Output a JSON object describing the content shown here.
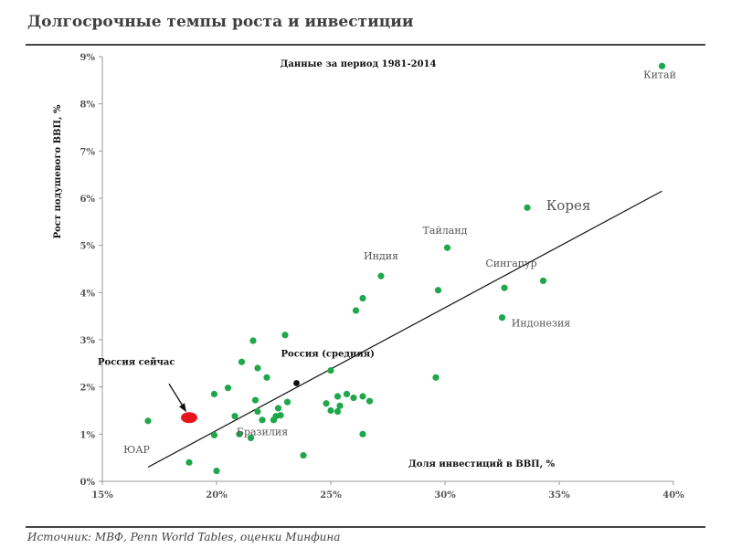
{
  "title": "Долгосрочные темпы роста и инвестиции",
  "source": "Источник: МВФ, Penn World Tables, оценки Минфина",
  "chart_data": {
    "type": "scatter",
    "title": "",
    "subtitle": "Данные за период 1981-2014",
    "xlabel": "Доля инвестиций в ВВП, %",
    "ylabel": "Рост подушевого ВВП, %",
    "xlim": [
      15,
      40
    ],
    "ylim": [
      0,
      9
    ],
    "x_ticks": [
      "15%",
      "20%",
      "25%",
      "30%",
      "35%",
      "40%"
    ],
    "y_ticks": [
      "0%",
      "1%",
      "2%",
      "3%",
      "4%",
      "5%",
      "6%",
      "7%",
      "8%",
      "9%"
    ],
    "point_color": "#1ea84a",
    "trendline": {
      "x": [
        17.0,
        39.5
      ],
      "y": [
        0.3,
        6.15
      ]
    },
    "points": [
      {
        "x": 39.5,
        "y": 8.8
      },
      {
        "x": 33.6,
        "y": 5.8
      },
      {
        "x": 30.1,
        "y": 4.95
      },
      {
        "x": 27.2,
        "y": 4.35
      },
      {
        "x": 29.7,
        "y": 4.05
      },
      {
        "x": 32.6,
        "y": 4.1
      },
      {
        "x": 34.3,
        "y": 4.25
      },
      {
        "x": 26.4,
        "y": 3.88
      },
      {
        "x": 26.1,
        "y": 3.62
      },
      {
        "x": 32.5,
        "y": 3.47
      },
      {
        "x": 23.0,
        "y": 3.1
      },
      {
        "x": 21.6,
        "y": 2.98
      },
      {
        "x": 21.1,
        "y": 2.53
      },
      {
        "x": 21.8,
        "y": 2.4
      },
      {
        "x": 25.0,
        "y": 2.35
      },
      {
        "x": 22.2,
        "y": 2.2
      },
      {
        "x": 29.6,
        "y": 2.2
      },
      {
        "x": 20.5,
        "y": 1.98
      },
      {
        "x": 19.9,
        "y": 1.85
      },
      {
        "x": 25.7,
        "y": 1.85
      },
      {
        "x": 21.7,
        "y": 1.72
      },
      {
        "x": 23.1,
        "y": 1.68
      },
      {
        "x": 24.8,
        "y": 1.65
      },
      {
        "x": 25.3,
        "y": 1.8
      },
      {
        "x": 26.0,
        "y": 1.77
      },
      {
        "x": 26.4,
        "y": 1.8
      },
      {
        "x": 26.7,
        "y": 1.7
      },
      {
        "x": 25.4,
        "y": 1.6
      },
      {
        "x": 22.7,
        "y": 1.55
      },
      {
        "x": 21.8,
        "y": 1.48
      },
      {
        "x": 25.0,
        "y": 1.5
      },
      {
        "x": 25.3,
        "y": 1.48
      },
      {
        "x": 22.0,
        "y": 1.3
      },
      {
        "x": 22.6,
        "y": 1.38
      },
      {
        "x": 22.8,
        "y": 1.4
      },
      {
        "x": 22.5,
        "y": 1.3
      },
      {
        "x": 20.8,
        "y": 1.38
      },
      {
        "x": 17.0,
        "y": 1.28
      },
      {
        "x": 19.9,
        "y": 0.98
      },
      {
        "x": 21.0,
        "y": 1.0
      },
      {
        "x": 21.5,
        "y": 0.92
      },
      {
        "x": 26.4,
        "y": 1.0
      },
      {
        "x": 23.8,
        "y": 0.55
      },
      {
        "x": 18.8,
        "y": 0.4
      },
      {
        "x": 20.0,
        "y": 0.22
      }
    ],
    "russia_avg": {
      "x": 23.5,
      "y": 2.08,
      "color": "#111111",
      "label": "Россия (средняя)"
    },
    "russia_now": {
      "x": 18.8,
      "y": 1.35,
      "color": "#e8141b",
      "label": "Россия сейчас"
    },
    "annotations": [
      {
        "text": "Китай",
        "x": 39.4,
        "y": 8.55,
        "size": 11
      },
      {
        "text": "Корея",
        "x": 35.4,
        "y": 5.75,
        "size": 15
      },
      {
        "text": "Тайланд",
        "x": 30.0,
        "y": 5.25,
        "size": 11
      },
      {
        "text": "Индия",
        "x": 27.2,
        "y": 4.7,
        "size": 11
      },
      {
        "text": "Сингапур",
        "x": 32.9,
        "y": 4.55,
        "size": 11
      },
      {
        "text": "Индонезия",
        "x": 34.2,
        "y": 3.28,
        "size": 11
      },
      {
        "text": "Бразилия",
        "x": 22.0,
        "y": 0.98,
        "size": 11
      },
      {
        "text": "ЮАР",
        "x": 16.5,
        "y": 0.6,
        "size": 11
      }
    ]
  }
}
